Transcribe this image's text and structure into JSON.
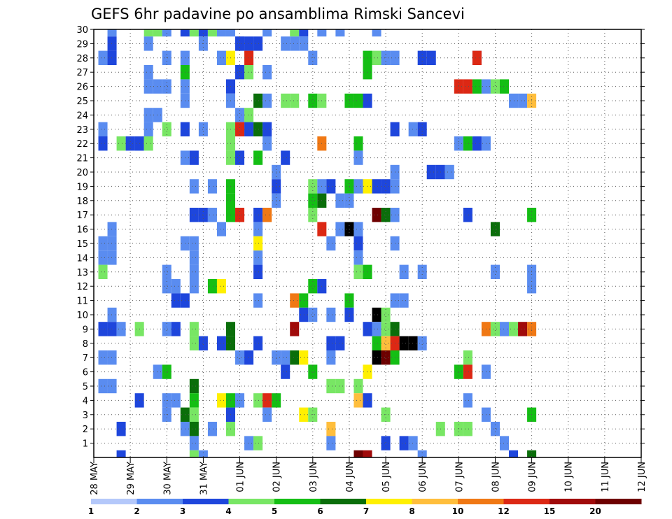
{
  "chart_data": {
    "type": "heatmap",
    "title": "GEFS 6hr padavine po ansamblima Rimski Sancevi",
    "xlabel": "",
    "ylabel": "",
    "x_ticks": [
      "28 MAY",
      "29 MAY",
      "30 MAY",
      "31 MAY",
      "01 JUN",
      "02 JUN",
      "03 JUN",
      "04 JUN",
      "05 JUN",
      "06 JUN",
      "07 JUN",
      "08 JUN",
      "09 JUN",
      "10 JUN",
      "11 JUN",
      "12 JUN"
    ],
    "y_ticks": [
      1,
      2,
      3,
      4,
      5,
      6,
      7,
      8,
      9,
      10,
      11,
      12,
      13,
      14,
      15,
      16,
      17,
      18,
      19,
      20,
      21,
      22,
      23,
      24,
      25,
      26,
      27,
      28,
      29,
      30
    ],
    "x_range_steps": [
      0,
      60
    ],
    "y_range": [
      0,
      30
    ],
    "grid": true,
    "colorbar": {
      "labels": [
        "1",
        "2",
        "3",
        "4",
        "5",
        "6",
        "7",
        "8",
        "10",
        "12",
        "15",
        "20"
      ],
      "colors": [
        "#b4c8fa",
        "#5a8cf0",
        "#1e46dc",
        "#78e664",
        "#14be14",
        "#0a6e0a",
        "#fff000",
        "#ffbe3c",
        "#f07814",
        "#dc2814",
        "#a00a0a",
        "#6e0000"
      ]
    },
    "cells": [
      [
        2,
        30,
        1
      ],
      [
        6,
        30,
        3
      ],
      [
        7,
        30,
        3
      ],
      [
        8,
        30,
        1
      ],
      [
        10,
        30,
        2
      ],
      [
        11,
        30,
        3
      ],
      [
        12,
        30,
        2
      ],
      [
        13,
        30,
        3
      ],
      [
        14,
        30,
        1
      ],
      [
        15,
        30,
        1
      ],
      [
        19,
        30,
        1
      ],
      [
        22,
        30,
        3
      ],
      [
        23,
        30,
        2
      ],
      [
        25,
        30,
        1
      ],
      [
        27,
        30,
        1
      ],
      [
        31,
        30,
        1
      ],
      [
        2,
        29,
        2
      ],
      [
        6,
        29,
        1
      ],
      [
        12,
        29,
        1
      ],
      [
        16,
        29,
        1
      ],
      [
        16,
        29,
        2
      ],
      [
        17,
        29,
        2
      ],
      [
        18,
        29,
        2
      ],
      [
        21,
        29,
        1
      ],
      [
        22,
        29,
        1
      ],
      [
        23,
        29,
        1
      ],
      [
        1,
        28,
        1
      ],
      [
        2,
        28,
        2
      ],
      [
        8,
        28,
        1
      ],
      [
        10,
        28,
        1
      ],
      [
        14,
        28,
        1
      ],
      [
        15,
        28,
        6
      ],
      [
        17,
        28,
        9
      ],
      [
        24,
        28,
        1
      ],
      [
        30,
        28,
        4
      ],
      [
        31,
        28,
        3
      ],
      [
        32,
        28,
        1
      ],
      [
        33,
        28,
        1
      ],
      [
        36,
        28,
        2
      ],
      [
        37,
        28,
        2
      ],
      [
        42,
        28,
        1
      ],
      [
        42,
        28,
        9
      ],
      [
        6,
        27,
        1
      ],
      [
        10,
        27,
        4
      ],
      [
        16,
        27,
        2
      ],
      [
        17,
        27,
        3
      ],
      [
        19,
        27,
        1
      ],
      [
        30,
        27,
        4
      ],
      [
        6,
        26,
        1
      ],
      [
        7,
        26,
        1
      ],
      [
        8,
        26,
        1
      ],
      [
        10,
        26,
        1
      ],
      [
        15,
        26,
        2
      ],
      [
        40,
        26,
        9
      ],
      [
        41,
        26,
        9
      ],
      [
        42,
        26,
        4
      ],
      [
        43,
        26,
        1
      ],
      [
        44,
        26,
        3
      ],
      [
        45,
        26,
        4
      ],
      [
        10,
        25,
        1
      ],
      [
        15,
        25,
        1
      ],
      [
        18,
        25,
        5
      ],
      [
        19,
        25,
        1
      ],
      [
        21,
        25,
        3
      ],
      [
        22,
        25,
        3
      ],
      [
        24,
        25,
        4
      ],
      [
        25,
        25,
        3
      ],
      [
        28,
        25,
        4
      ],
      [
        29,
        25,
        4
      ],
      [
        30,
        25,
        2
      ],
      [
        46,
        25,
        1
      ],
      [
        47,
        25,
        1
      ],
      [
        48,
        25,
        7
      ],
      [
        6,
        24,
        1
      ],
      [
        7,
        24,
        1
      ],
      [
        16,
        24,
        1
      ],
      [
        17,
        24,
        3
      ],
      [
        1,
        23,
        1
      ],
      [
        6,
        23,
        1
      ],
      [
        8,
        23,
        3
      ],
      [
        10,
        23,
        2
      ],
      [
        12,
        23,
        1
      ],
      [
        15,
        23,
        3
      ],
      [
        16,
        23,
        9
      ],
      [
        17,
        23,
        2
      ],
      [
        18,
        23,
        5
      ],
      [
        19,
        23,
        2
      ],
      [
        33,
        23,
        2
      ],
      [
        35,
        23,
        1
      ],
      [
        36,
        23,
        2
      ],
      [
        1,
        22,
        2
      ],
      [
        3,
        22,
        3
      ],
      [
        4,
        22,
        2
      ],
      [
        5,
        22,
        1
      ],
      [
        5,
        22,
        2
      ],
      [
        6,
        22,
        3
      ],
      [
        15,
        22,
        3
      ],
      [
        19,
        22,
        1
      ],
      [
        25,
        22,
        8
      ],
      [
        29,
        22,
        4
      ],
      [
        40,
        22,
        1
      ],
      [
        41,
        22,
        4
      ],
      [
        42,
        22,
        2
      ],
      [
        43,
        22,
        1
      ],
      [
        10,
        21,
        1
      ],
      [
        11,
        21,
        2
      ],
      [
        15,
        21,
        3
      ],
      [
        16,
        21,
        2
      ],
      [
        18,
        21,
        4
      ],
      [
        21,
        21,
        2
      ],
      [
        29,
        21,
        1
      ],
      [
        20,
        20,
        1
      ],
      [
        33,
        20,
        1
      ],
      [
        37,
        20,
        2
      ],
      [
        38,
        20,
        2
      ],
      [
        39,
        20,
        1
      ],
      [
        11,
        19,
        1
      ],
      [
        13,
        19,
        1
      ],
      [
        15,
        19,
        4
      ],
      [
        20,
        19,
        2
      ],
      [
        24,
        19,
        3
      ],
      [
        25,
        19,
        1
      ],
      [
        26,
        19,
        2
      ],
      [
        28,
        19,
        4
      ],
      [
        29,
        19,
        1
      ],
      [
        30,
        19,
        6
      ],
      [
        31,
        19,
        2
      ],
      [
        32,
        19,
        2
      ],
      [
        33,
        19,
        1
      ],
      [
        15,
        18,
        4
      ],
      [
        20,
        18,
        1
      ],
      [
        24,
        18,
        4
      ],
      [
        25,
        18,
        5
      ],
      [
        27,
        18,
        1
      ],
      [
        28,
        18,
        1
      ],
      [
        11,
        17,
        2
      ],
      [
        12,
        17,
        2
      ],
      [
        13,
        17,
        1
      ],
      [
        15,
        17,
        4
      ],
      [
        16,
        17,
        9
      ],
      [
        18,
        17,
        2
      ],
      [
        19,
        17,
        8
      ],
      [
        24,
        17,
        3
      ],
      [
        31,
        17,
        11
      ],
      [
        32,
        17,
        5
      ],
      [
        33,
        17,
        1
      ],
      [
        41,
        17,
        2
      ],
      [
        48,
        17,
        4
      ],
      [
        2,
        16,
        1
      ],
      [
        14,
        16,
        1
      ],
      [
        18,
        16,
        1
      ],
      [
        25,
        16,
        9
      ],
      [
        27,
        16,
        1
      ],
      [
        28,
        16,
        12
      ],
      [
        29,
        16,
        1
      ],
      [
        44,
        16,
        5
      ],
      [
        1,
        15,
        1
      ],
      [
        2,
        15,
        1
      ],
      [
        10,
        15,
        1
      ],
      [
        11,
        15,
        1
      ],
      [
        18,
        15,
        6
      ],
      [
        26,
        15,
        1
      ],
      [
        29,
        15,
        2
      ],
      [
        33,
        15,
        1
      ],
      [
        1,
        14,
        1
      ],
      [
        2,
        14,
        1
      ],
      [
        11,
        14,
        1
      ],
      [
        18,
        14,
        1
      ],
      [
        29,
        14,
        1
      ],
      [
        1,
        13,
        3
      ],
      [
        8,
        13,
        1
      ],
      [
        11,
        13,
        1
      ],
      [
        18,
        13,
        2
      ],
      [
        29,
        13,
        3
      ],
      [
        30,
        13,
        4
      ],
      [
        34,
        13,
        1
      ],
      [
        36,
        13,
        1
      ],
      [
        44,
        13,
        1
      ],
      [
        48,
        13,
        1
      ],
      [
        8,
        12,
        1
      ],
      [
        9,
        12,
        1
      ],
      [
        11,
        12,
        1
      ],
      [
        13,
        12,
        4
      ],
      [
        14,
        12,
        6
      ],
      [
        24,
        12,
        4
      ],
      [
        25,
        12,
        2
      ],
      [
        48,
        12,
        1
      ],
      [
        9,
        11,
        2
      ],
      [
        10,
        11,
        2
      ],
      [
        18,
        11,
        1
      ],
      [
        22,
        11,
        8
      ],
      [
        23,
        11,
        4
      ],
      [
        28,
        11,
        4
      ],
      [
        33,
        11,
        1
      ],
      [
        34,
        11,
        1
      ],
      [
        2,
        10,
        1
      ],
      [
        23,
        10,
        2
      ],
      [
        24,
        10,
        1
      ],
      [
        26,
        10,
        1
      ],
      [
        28,
        10,
        2
      ],
      [
        31,
        10,
        12
      ],
      [
        32,
        10,
        3
      ],
      [
        1,
        9,
        2
      ],
      [
        2,
        9,
        2
      ],
      [
        3,
        9,
        1
      ],
      [
        5,
        9,
        3
      ],
      [
        8,
        9,
        1
      ],
      [
        9,
        9,
        2
      ],
      [
        11,
        9,
        3
      ],
      [
        15,
        9,
        5
      ],
      [
        22,
        9,
        10
      ],
      [
        30,
        9,
        2
      ],
      [
        31,
        9,
        1
      ],
      [
        32,
        9,
        3
      ],
      [
        33,
        9,
        5
      ],
      [
        43,
        9,
        8
      ],
      [
        44,
        9,
        3
      ],
      [
        45,
        9,
        1
      ],
      [
        46,
        9,
        3
      ],
      [
        47,
        9,
        10
      ],
      [
        48,
        9,
        8
      ],
      [
        11,
        8,
        3
      ],
      [
        12,
        8,
        2
      ],
      [
        14,
        8,
        2
      ],
      [
        15,
        8,
        5
      ],
      [
        18,
        8,
        2
      ],
      [
        26,
        8,
        2
      ],
      [
        27,
        8,
        2
      ],
      [
        31,
        8,
        4
      ],
      [
        32,
        8,
        7
      ],
      [
        33,
        8,
        9
      ],
      [
        34,
        8,
        12
      ],
      [
        35,
        8,
        12
      ],
      [
        36,
        8,
        1
      ],
      [
        1,
        7,
        1
      ],
      [
        2,
        7,
        1
      ],
      [
        16,
        7,
        1
      ],
      [
        17,
        7,
        2
      ],
      [
        20,
        7,
        1
      ],
      [
        21,
        7,
        1
      ],
      [
        22,
        7,
        5
      ],
      [
        23,
        7,
        6
      ],
      [
        26,
        7,
        1
      ],
      [
        31,
        7,
        12
      ],
      [
        32,
        7,
        11
      ],
      [
        33,
        7,
        4
      ],
      [
        41,
        7,
        3
      ],
      [
        7,
        6,
        1
      ],
      [
        8,
        6,
        4
      ],
      [
        21,
        6,
        2
      ],
      [
        24,
        6,
        4
      ],
      [
        30,
        6,
        6
      ],
      [
        40,
        6,
        4
      ],
      [
        41,
        6,
        9
      ],
      [
        43,
        6,
        1
      ],
      [
        1,
        5,
        1
      ],
      [
        2,
        5,
        1
      ],
      [
        11,
        5,
        5
      ],
      [
        26,
        5,
        3
      ],
      [
        27,
        5,
        3
      ],
      [
        29,
        5,
        3
      ],
      [
        5,
        4,
        2
      ],
      [
        8,
        4,
        1
      ],
      [
        9,
        4,
        1
      ],
      [
        11,
        4,
        4
      ],
      [
        14,
        4,
        6
      ],
      [
        15,
        4,
        4
      ],
      [
        16,
        4,
        1
      ],
      [
        18,
        4,
        3
      ],
      [
        19,
        4,
        9
      ],
      [
        20,
        4,
        4
      ],
      [
        29,
        4,
        7
      ],
      [
        30,
        4,
        2
      ],
      [
        41,
        4,
        1
      ],
      [
        8,
        3,
        1
      ],
      [
        10,
        3,
        5
      ],
      [
        11,
        3,
        3
      ],
      [
        15,
        3,
        2
      ],
      [
        19,
        3,
        1
      ],
      [
        23,
        3,
        6
      ],
      [
        24,
        3,
        3
      ],
      [
        32,
        3,
        3
      ],
      [
        43,
        3,
        1
      ],
      [
        48,
        3,
        4
      ],
      [
        3,
        2,
        2
      ],
      [
        10,
        2,
        1
      ],
      [
        11,
        2,
        5
      ],
      [
        13,
        2,
        1
      ],
      [
        15,
        2,
        3
      ],
      [
        26,
        2,
        7
      ],
      [
        38,
        2,
        3
      ],
      [
        40,
        2,
        3
      ],
      [
        41,
        2,
        3
      ],
      [
        44,
        2,
        1
      ],
      [
        11,
        1,
        1
      ],
      [
        17,
        1,
        1
      ],
      [
        18,
        1,
        3
      ],
      [
        26,
        1,
        1
      ],
      [
        32,
        1,
        2
      ],
      [
        34,
        1,
        2
      ],
      [
        35,
        1,
        1
      ],
      [
        45,
        1,
        1
      ],
      [
        3,
        0,
        2
      ],
      [
        11,
        0,
        3
      ],
      [
        12,
        0,
        1
      ],
      [
        29,
        0,
        11
      ],
      [
        30,
        0,
        10
      ],
      [
        36,
        0,
        1
      ],
      [
        46,
        0,
        2
      ],
      [
        48,
        0,
        5
      ]
    ]
  }
}
